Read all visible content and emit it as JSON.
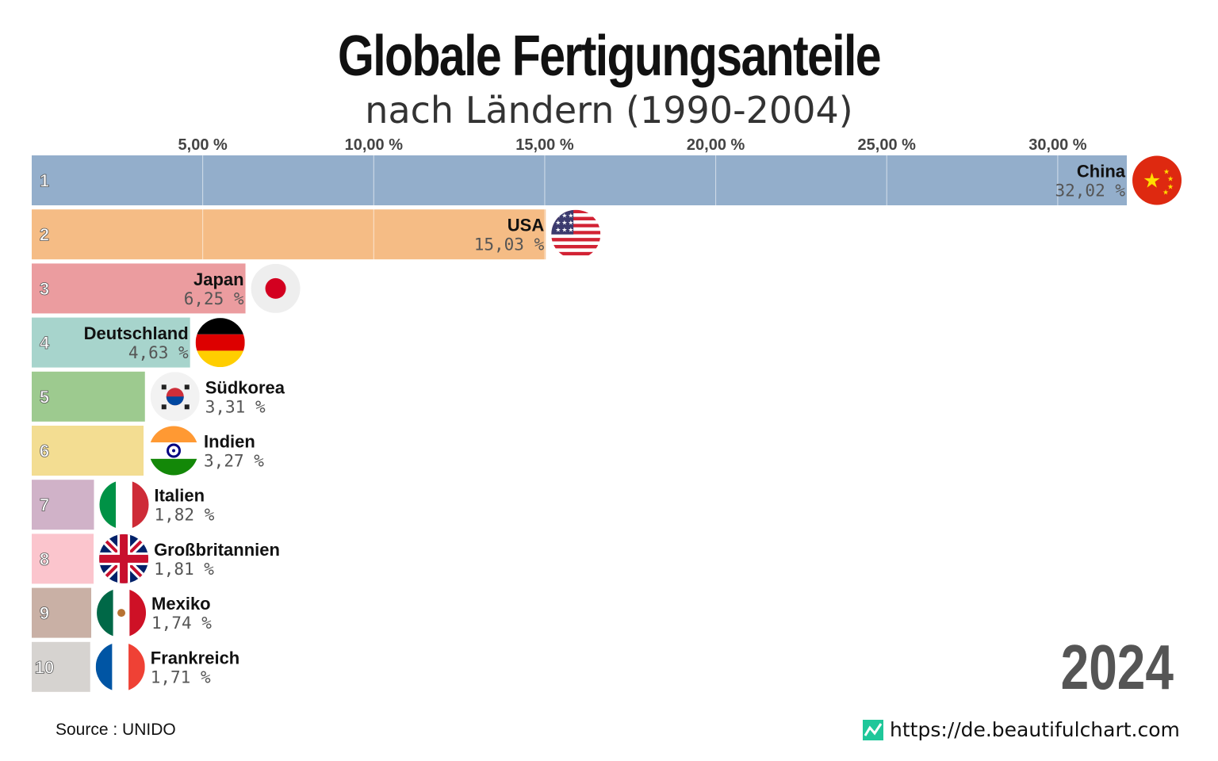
{
  "chart_data": {
    "type": "bar",
    "orientation": "horizontal",
    "title": "Globale Fertigungsanteile",
    "subtitle": "nach Ländern (1990-2004)",
    "year": "2024",
    "xlim": [
      0,
      33
    ],
    "xticks": [
      5,
      10,
      15,
      20,
      25,
      30
    ],
    "xtick_labels": [
      "5,00 %",
      "10,00 %",
      "15,00 %",
      "20,00 %",
      "25,00 %",
      "30,00 %"
    ],
    "grid": true,
    "categories": [
      "China",
      "USA",
      "Japan",
      "Deutschland",
      "Südkorea",
      "Indien",
      "Italien",
      "Großbritannien",
      "Mexiko",
      "Frankreich"
    ],
    "ranks": [
      "1",
      "2",
      "3",
      "4",
      "5",
      "6",
      "7",
      "8",
      "9",
      "10"
    ],
    "values": [
      32.02,
      15.03,
      6.25,
      4.63,
      3.31,
      3.27,
      1.82,
      1.81,
      1.74,
      1.71
    ],
    "value_labels": [
      "32,02 %",
      "15,03 %",
      "6,25 %",
      "4,63 %",
      "3,31 %",
      "3,27 %",
      "1,82 %",
      "1,81 %",
      "1,74 %",
      "1,71 %"
    ],
    "colors": [
      "#93aecb",
      "#f5bc85",
      "#eb9c9f",
      "#a7d4cc",
      "#9dca8f",
      "#f3dd92",
      "#d0b2c8",
      "#fbc5cd",
      "#c9b0a5",
      "#d6d3d0"
    ],
    "flags": [
      "china-flag",
      "usa-flag",
      "japan-flag",
      "germany-flag",
      "south-korea-flag",
      "india-flag",
      "italy-flag",
      "uk-flag",
      "mexico-flag",
      "france-flag"
    ]
  },
  "footer": {
    "source": "Source : UNIDO",
    "site": "https://de.beautifulchart.com",
    "site_icon": "line-chart-icon",
    "site_icon_color": "#1fc79a"
  }
}
